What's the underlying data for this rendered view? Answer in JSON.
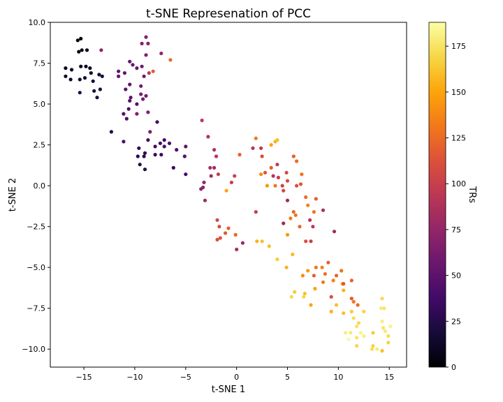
{
  "chart_data": {
    "type": "scatter",
    "title": "t-SNE Represenation of PCC",
    "xlabel": "t-SNE 1",
    "ylabel": "t-SNE 2",
    "xlim": [
      -18.3,
      16.7
    ],
    "ylim": [
      -11.1,
      10.0
    ],
    "x_ticks": [
      -15,
      -10,
      -5,
      0,
      5,
      10,
      15
    ],
    "y_ticks": [
      -10.0,
      -7.5,
      -5.0,
      -2.5,
      0.0,
      2.5,
      5.0,
      7.5,
      10.0
    ],
    "x_tick_labels": [
      "−15",
      "−10",
      "−5",
      "0",
      "5",
      "10",
      "15"
    ],
    "y_tick_labels": [
      "−10.0",
      "−7.5",
      "−5.0",
      "−2.5",
      "0.0",
      "2.5",
      "5.0",
      "7.5",
      "10.0"
    ],
    "grid": false,
    "colormap": "inferno",
    "colorbar": {
      "label": "TRs",
      "range": [
        0,
        188
      ],
      "ticks": [
        0,
        25,
        50,
        75,
        100,
        125,
        150,
        175
      ],
      "tick_labels": [
        "0",
        "25",
        "50",
        "75",
        "100",
        "125",
        "150",
        "175"
      ]
    },
    "points": [
      {
        "x": -15.6,
        "y": 8.9,
        "c": 2
      },
      {
        "x": -15.3,
        "y": 9.0,
        "c": 3
      },
      {
        "x": -15.5,
        "y": 8.2,
        "c": 4
      },
      {
        "x": -15.2,
        "y": 8.3,
        "c": 5
      },
      {
        "x": -14.7,
        "y": 8.3,
        "c": 6
      },
      {
        "x": -15.3,
        "y": 7.3,
        "c": 8
      },
      {
        "x": -14.8,
        "y": 7.3,
        "c": 9
      },
      {
        "x": -16.8,
        "y": 7.2,
        "c": 10
      },
      {
        "x": -16.2,
        "y": 7.1,
        "c": 11
      },
      {
        "x": -14.4,
        "y": 7.2,
        "c": 12
      },
      {
        "x": -14.3,
        "y": 6.9,
        "c": 13
      },
      {
        "x": -16.8,
        "y": 6.7,
        "c": 14
      },
      {
        "x": -16.3,
        "y": 6.5,
        "c": 15
      },
      {
        "x": -15.4,
        "y": 6.5,
        "c": 16
      },
      {
        "x": -14.9,
        "y": 6.6,
        "c": 17
      },
      {
        "x": -14.1,
        "y": 6.4,
        "c": 18
      },
      {
        "x": -13.5,
        "y": 6.8,
        "c": 19
      },
      {
        "x": -13.2,
        "y": 6.7,
        "c": 20
      },
      {
        "x": -14.0,
        "y": 5.8,
        "c": 21
      },
      {
        "x": -13.7,
        "y": 5.4,
        "c": 22
      },
      {
        "x": -13.4,
        "y": 5.9,
        "c": 23
      },
      {
        "x": -15.4,
        "y": 5.7,
        "c": 24
      },
      {
        "x": -12.3,
        "y": 3.3,
        "c": 25
      },
      {
        "x": -9.5,
        "y": 1.3,
        "c": 26
      },
      {
        "x": -9.0,
        "y": 1.0,
        "c": 27
      },
      {
        "x": -9.7,
        "y": 1.8,
        "c": 28
      },
      {
        "x": -9.1,
        "y": 1.8,
        "c": 29
      },
      {
        "x": -9.0,
        "y": 2.0,
        "c": 30
      },
      {
        "x": -9.6,
        "y": 2.3,
        "c": 31
      },
      {
        "x": -8.0,
        "y": 1.9,
        "c": 32
      },
      {
        "x": -7.4,
        "y": 1.9,
        "c": 34
      },
      {
        "x": -7.8,
        "y": 3.9,
        "c": 35
      },
      {
        "x": -7.5,
        "y": 2.6,
        "c": 36
      },
      {
        "x": -7.1,
        "y": 2.8,
        "c": 37
      },
      {
        "x": -8.7,
        "y": 2.8,
        "c": 38
      },
      {
        "x": -8.0,
        "y": 2.4,
        "c": 40
      },
      {
        "x": -7.1,
        "y": 2.4,
        "c": 41
      },
      {
        "x": -6.6,
        "y": 2.6,
        "c": 42
      },
      {
        "x": -11.1,
        "y": 2.7,
        "c": 43
      },
      {
        "x": -10.8,
        "y": 4.1,
        "c": 44
      },
      {
        "x": -11.1,
        "y": 4.4,
        "c": 45
      },
      {
        "x": -10.6,
        "y": 4.7,
        "c": 46
      },
      {
        "x": -9.8,
        "y": 5.0,
        "c": 47
      },
      {
        "x": -10.4,
        "y": 5.4,
        "c": 48
      },
      {
        "x": -10.5,
        "y": 5.2,
        "c": 49
      },
      {
        "x": -10.9,
        "y": 5.9,
        "c": 50
      },
      {
        "x": -10.5,
        "y": 6.2,
        "c": 51
      },
      {
        "x": -11.6,
        "y": 6.7,
        "c": 52
      },
      {
        "x": -11.6,
        "y": 7.0,
        "c": 53
      },
      {
        "x": -11.0,
        "y": 6.9,
        "c": 54
      },
      {
        "x": -10.5,
        "y": 7.6,
        "c": 55
      },
      {
        "x": -10.2,
        "y": 7.4,
        "c": 56
      },
      {
        "x": -9.8,
        "y": 7.2,
        "c": 57
      },
      {
        "x": -9.3,
        "y": 7.3,
        "c": 58
      },
      {
        "x": -9.1,
        "y": 6.7,
        "c": 59
      },
      {
        "x": -9.4,
        "y": 6.1,
        "c": 60
      },
      {
        "x": -9.2,
        "y": 5.3,
        "c": 61
      },
      {
        "x": -8.9,
        "y": 5.5,
        "c": 62
      },
      {
        "x": -9.4,
        "y": 5.6,
        "c": 63
      },
      {
        "x": -8.5,
        "y": 3.3,
        "c": 64
      },
      {
        "x": -8.7,
        "y": 4.5,
        "c": 65
      },
      {
        "x": -9.8,
        "y": 4.4,
        "c": 66
      },
      {
        "x": -8.9,
        "y": 8.0,
        "c": 67
      },
      {
        "x": -9.3,
        "y": 8.7,
        "c": 68
      },
      {
        "x": -8.9,
        "y": 9.1,
        "c": 69
      },
      {
        "x": -8.7,
        "y": 8.7,
        "c": 70
      },
      {
        "x": -6.2,
        "y": 1.1,
        "c": 33
      },
      {
        "x": -5.0,
        "y": 0.7,
        "c": 39
      },
      {
        "x": -5.9,
        "y": 2.2,
        "c": 43
      },
      {
        "x": -5.1,
        "y": 1.8,
        "c": 47
      },
      {
        "x": -5.0,
        "y": 2.4,
        "c": 51
      },
      {
        "x": -13.3,
        "y": 8.3,
        "c": 72
      },
      {
        "x": -7.4,
        "y": 8.1,
        "c": 76
      },
      {
        "x": -8.6,
        "y": 6.9,
        "c": 95
      },
      {
        "x": -8.2,
        "y": 7.0,
        "c": 118
      },
      {
        "x": -6.5,
        "y": 7.7,
        "c": 125
      },
      {
        "x": -3.5,
        "y": -0.2,
        "c": 72
      },
      {
        "x": -3.3,
        "y": -0.1,
        "c": 74
      },
      {
        "x": -3.2,
        "y": 0.2,
        "c": 78
      },
      {
        "x": -3.1,
        "y": -0.9,
        "c": 80
      },
      {
        "x": -2.5,
        "y": 0.6,
        "c": 82
      },
      {
        "x": -2.2,
        "y": 1.1,
        "c": 84
      },
      {
        "x": -2.6,
        "y": 1.1,
        "c": 86
      },
      {
        "x": -2.2,
        "y": 2.2,
        "c": 88
      },
      {
        "x": -2.8,
        "y": 3.0,
        "c": 90
      },
      {
        "x": -2.0,
        "y": 1.8,
        "c": 92
      },
      {
        "x": -3.4,
        "y": 4.0,
        "c": 95
      },
      {
        "x": -1.8,
        "y": 0.7,
        "c": 98
      },
      {
        "x": -0.5,
        "y": 0.2,
        "c": 101
      },
      {
        "x": -0.2,
        "y": 0.6,
        "c": 103
      },
      {
        "x": -1.9,
        "y": -2.1,
        "c": 105
      },
      {
        "x": -1.7,
        "y": -2.5,
        "c": 108
      },
      {
        "x": -1.9,
        "y": -3.3,
        "c": 111
      },
      {
        "x": -1.6,
        "y": -3.2,
        "c": 114
      },
      {
        "x": -1.1,
        "y": -2.9,
        "c": 117
      },
      {
        "x": -0.8,
        "y": -2.6,
        "c": 120
      },
      {
        "x": -0.1,
        "y": -3.0,
        "c": 123
      },
      {
        "x": 0.6,
        "y": -3.5,
        "c": 80
      },
      {
        "x": 0.0,
        "y": -3.9,
        "c": 85
      },
      {
        "x": 0.3,
        "y": 1.9,
        "c": 120
      },
      {
        "x": -1.0,
        "y": -0.3,
        "c": 150
      },
      {
        "x": 2.0,
        "y": -3.4,
        "c": 155
      },
      {
        "x": 2.5,
        "y": -3.4,
        "c": 160
      },
      {
        "x": 1.9,
        "y": -1.6,
        "c": 100
      },
      {
        "x": 1.9,
        "y": 2.9,
        "c": 130
      },
      {
        "x": 1.6,
        "y": 2.3,
        "c": 90
      },
      {
        "x": 2.4,
        "y": 2.3,
        "c": 95
      },
      {
        "x": 2.5,
        "y": 1.8,
        "c": 110
      },
      {
        "x": 2.8,
        "y": 0.8,
        "c": 115
      },
      {
        "x": 2.4,
        "y": 0.7,
        "c": 140
      },
      {
        "x": 3.0,
        "y": 0.0,
        "c": 145
      },
      {
        "x": 3.4,
        "y": 2.5,
        "c": 150
      },
      {
        "x": 3.8,
        "y": 2.7,
        "c": 155
      },
      {
        "x": 4.0,
        "y": 2.8,
        "c": 160
      },
      {
        "x": 3.4,
        "y": 1.1,
        "c": 118
      },
      {
        "x": 3.6,
        "y": 0.6,
        "c": 92
      },
      {
        "x": 4.0,
        "y": 1.3,
        "c": 96
      },
      {
        "x": 4.1,
        "y": 0.5,
        "c": 99
      },
      {
        "x": 4.5,
        "y": 0.0,
        "c": 102
      },
      {
        "x": 3.8,
        "y": 0.0,
        "c": 130
      },
      {
        "x": 4.6,
        "y": -0.3,
        "c": 106
      },
      {
        "x": 4.9,
        "y": 0.8,
        "c": 108
      },
      {
        "x": 5.0,
        "y": 0.3,
        "c": 110
      },
      {
        "x": 5.6,
        "y": 1.8,
        "c": 120
      },
      {
        "x": 5.9,
        "y": 1.5,
        "c": 125
      },
      {
        "x": 6.4,
        "y": 0.7,
        "c": 128
      },
      {
        "x": 5.9,
        "y": 0.0,
        "c": 112
      },
      {
        "x": 6.3,
        "y": 0.1,
        "c": 114
      },
      {
        "x": 5.0,
        "y": -0.9,
        "c": 80
      },
      {
        "x": 5.6,
        "y": -1.6,
        "c": 125
      },
      {
        "x": 5.8,
        "y": -1.8,
        "c": 128
      },
      {
        "x": 4.6,
        "y": -2.3,
        "c": 80
      },
      {
        "x": 5.3,
        "y": -2.0,
        "c": 132
      },
      {
        "x": 6.2,
        "y": -2.5,
        "c": 122
      },
      {
        "x": 6.8,
        "y": -0.7,
        "c": 125
      },
      {
        "x": 7.0,
        "y": -1.2,
        "c": 135
      },
      {
        "x": 7.2,
        "y": -2.1,
        "c": 90
      },
      {
        "x": 7.5,
        "y": -2.5,
        "c": 95
      },
      {
        "x": 7.6,
        "y": -1.6,
        "c": 130
      },
      {
        "x": 7.8,
        "y": -0.8,
        "c": 120
      },
      {
        "x": 8.5,
        "y": -1.5,
        "c": 85
      },
      {
        "x": 9.6,
        "y": -2.8,
        "c": 82
      },
      {
        "x": 5.0,
        "y": -3.0,
        "c": 145
      },
      {
        "x": 6.8,
        "y": -3.4,
        "c": 110
      },
      {
        "x": 7.3,
        "y": -3.4,
        "c": 100
      },
      {
        "x": 3.2,
        "y": -3.7,
        "c": 160
      },
      {
        "x": 4.0,
        "y": -4.5,
        "c": 165
      },
      {
        "x": 4.9,
        "y": -5.0,
        "c": 155
      },
      {
        "x": 5.5,
        "y": -4.2,
        "c": 158
      },
      {
        "x": 6.5,
        "y": -5.5,
        "c": 140
      },
      {
        "x": 7.0,
        "y": -5.2,
        "c": 145
      },
      {
        "x": 7.6,
        "y": -5.5,
        "c": 120
      },
      {
        "x": 7.8,
        "y": -5.0,
        "c": 130
      },
      {
        "x": 7.7,
        "y": -6.3,
        "c": 150
      },
      {
        "x": 8.4,
        "y": -5.0,
        "c": 135
      },
      {
        "x": 9.0,
        "y": -4.7,
        "c": 120
      },
      {
        "x": 8.7,
        "y": -5.4,
        "c": 128
      },
      {
        "x": 8.5,
        "y": -5.9,
        "c": 132
      },
      {
        "x": 9.8,
        "y": -5.5,
        "c": 122
      },
      {
        "x": 10.3,
        "y": -5.2,
        "c": 130
      },
      {
        "x": 9.5,
        "y": -5.8,
        "c": 135
      },
      {
        "x": 10.4,
        "y": -6.0,
        "c": 150
      },
      {
        "x": 10.5,
        "y": -6.4,
        "c": 155
      },
      {
        "x": 10.5,
        "y": -6.0,
        "c": 115
      },
      {
        "x": 11.3,
        "y": -5.8,
        "c": 120
      },
      {
        "x": 9.3,
        "y": -6.8,
        "c": 110
      },
      {
        "x": 11.3,
        "y": -6.9,
        "c": 115
      },
      {
        "x": 7.3,
        "y": -7.3,
        "c": 150
      },
      {
        "x": 9.8,
        "y": -7.3,
        "c": 160
      },
      {
        "x": 9.3,
        "y": -7.7,
        "c": 155
      },
      {
        "x": 10.5,
        "y": -7.8,
        "c": 160
      },
      {
        "x": 5.4,
        "y": -6.8,
        "c": 170
      },
      {
        "x": 5.7,
        "y": -6.5,
        "c": 165
      },
      {
        "x": 6.6,
        "y": -6.8,
        "c": 170
      },
      {
        "x": 6.7,
        "y": -6.6,
        "c": 160
      },
      {
        "x": 11.5,
        "y": -7.1,
        "c": 130
      },
      {
        "x": 11.9,
        "y": -7.3,
        "c": 125
      },
      {
        "x": 11.3,
        "y": -7.7,
        "c": 165
      },
      {
        "x": 12.0,
        "y": -8.4,
        "c": 170
      },
      {
        "x": 11.8,
        "y": -8.6,
        "c": 175
      },
      {
        "x": 12.5,
        "y": -7.7,
        "c": 168
      },
      {
        "x": 11.5,
        "y": -8.1,
        "c": 172
      },
      {
        "x": 10.7,
        "y": -9.0,
        "c": 180
      },
      {
        "x": 11.2,
        "y": -9.0,
        "c": 178
      },
      {
        "x": 11.8,
        "y": -9.3,
        "c": 175
      },
      {
        "x": 12.2,
        "y": -9.0,
        "c": 182
      },
      {
        "x": 12.5,
        "y": -9.2,
        "c": 180
      },
      {
        "x": 11.8,
        "y": -9.8,
        "c": 170
      },
      {
        "x": 13.4,
        "y": -9.8,
        "c": 168
      },
      {
        "x": 13.3,
        "y": -10.0,
        "c": 172
      },
      {
        "x": 13.8,
        "y": -10.0,
        "c": 178
      },
      {
        "x": 14.3,
        "y": -10.1,
        "c": 160
      },
      {
        "x": 13.4,
        "y": -9.0,
        "c": 165
      },
      {
        "x": 14.3,
        "y": -8.3,
        "c": 180
      },
      {
        "x": 14.4,
        "y": -8.7,
        "c": 175
      },
      {
        "x": 14.6,
        "y": -8.9,
        "c": 178
      },
      {
        "x": 14.9,
        "y": -9.2,
        "c": 172
      },
      {
        "x": 14.9,
        "y": -9.6,
        "c": 168
      },
      {
        "x": 15.1,
        "y": -8.6,
        "c": 182
      },
      {
        "x": 14.2,
        "y": -7.5,
        "c": 178
      },
      {
        "x": 14.5,
        "y": -7.5,
        "c": 175
      },
      {
        "x": 14.3,
        "y": -6.9,
        "c": 170
      },
      {
        "x": 11.0,
        "y": -9.4,
        "c": 185
      }
    ]
  }
}
